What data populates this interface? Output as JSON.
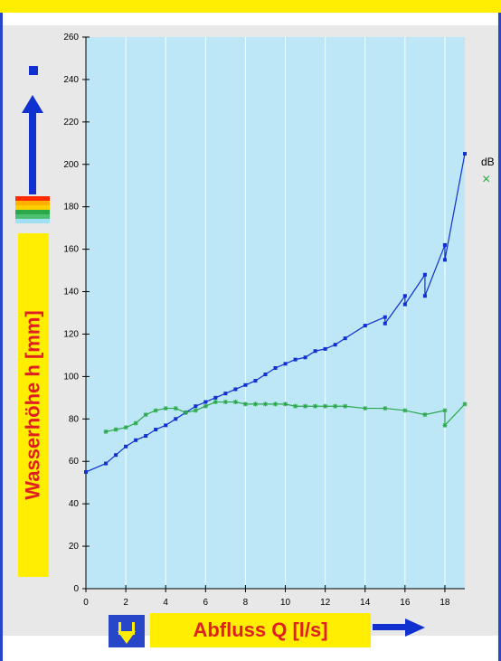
{
  "colors": {
    "accent_yellow": "#ffee00",
    "frame_blue": "#2846c8",
    "plot_bg": "#bde7f6",
    "series_blue": "#1030d0",
    "series_green": "#2aa84a",
    "label_red": "#e02020",
    "level_bars": [
      "#ff2a00",
      "#ffb000",
      "#ffd000",
      "#2aa84a",
      "#4cc070",
      "#9fe0f5"
    ]
  },
  "icons": {
    "marker": "blue-square-icon",
    "up": "up-arrow-icon",
    "down": "down-arrow-button",
    "right": "right-arrow-icon"
  },
  "legend": {
    "title": "dB",
    "marker": "×"
  },
  "chart_data": {
    "type": "line",
    "xlabel": "Abfluss Q [l/s]",
    "ylabel": "Wasserhöhe h [mm]",
    "xlim": [
      0,
      19
    ],
    "ylim": [
      0,
      260
    ],
    "xticks": [
      0,
      2,
      4,
      6,
      8,
      10,
      12,
      14,
      16,
      18
    ],
    "yticks": [
      0,
      20,
      40,
      60,
      80,
      100,
      120,
      140,
      160,
      180,
      200,
      220,
      240,
      260
    ],
    "grid": "vertical",
    "legend_position": "right",
    "series": [
      {
        "color": "#1030d0",
        "marker": "square",
        "x": [
          0,
          1,
          1.5,
          2,
          2.5,
          3,
          3.5,
          4,
          4.5,
          5,
          5.5,
          6,
          6.5,
          7,
          7.5,
          8,
          8.5,
          9,
          9.5,
          10,
          10.5,
          11,
          11.5,
          12,
          12.5,
          13,
          14,
          15,
          15,
          16,
          16,
          17,
          17,
          18,
          18,
          19
        ],
        "y": [
          55,
          59,
          63,
          67,
          70,
          72,
          75,
          77,
          80,
          83,
          86,
          88,
          90,
          92,
          94,
          96,
          98,
          101,
          104,
          106,
          108,
          109,
          112,
          113,
          115,
          118,
          124,
          128,
          125,
          138,
          134,
          148,
          138,
          162,
          155,
          205
        ]
      },
      {
        "name": "dB",
        "color": "#2aa84a",
        "marker": "asterisk",
        "x": [
          1,
          1.5,
          2,
          2.5,
          3,
          3.5,
          4,
          4.5,
          5,
          5.5,
          6,
          6.5,
          7,
          7.5,
          8,
          8.5,
          9,
          9.5,
          10,
          10.5,
          11,
          11.5,
          12,
          12.5,
          13,
          14,
          15,
          16,
          17,
          18,
          18,
          19
        ],
        "y": [
          74,
          75,
          76,
          78,
          82,
          84,
          85,
          85,
          83,
          84,
          86,
          88,
          88,
          88,
          87,
          87,
          87,
          87,
          87,
          86,
          86,
          86,
          86,
          86,
          86,
          85,
          85,
          84,
          82,
          84,
          77,
          87
        ]
      }
    ]
  }
}
